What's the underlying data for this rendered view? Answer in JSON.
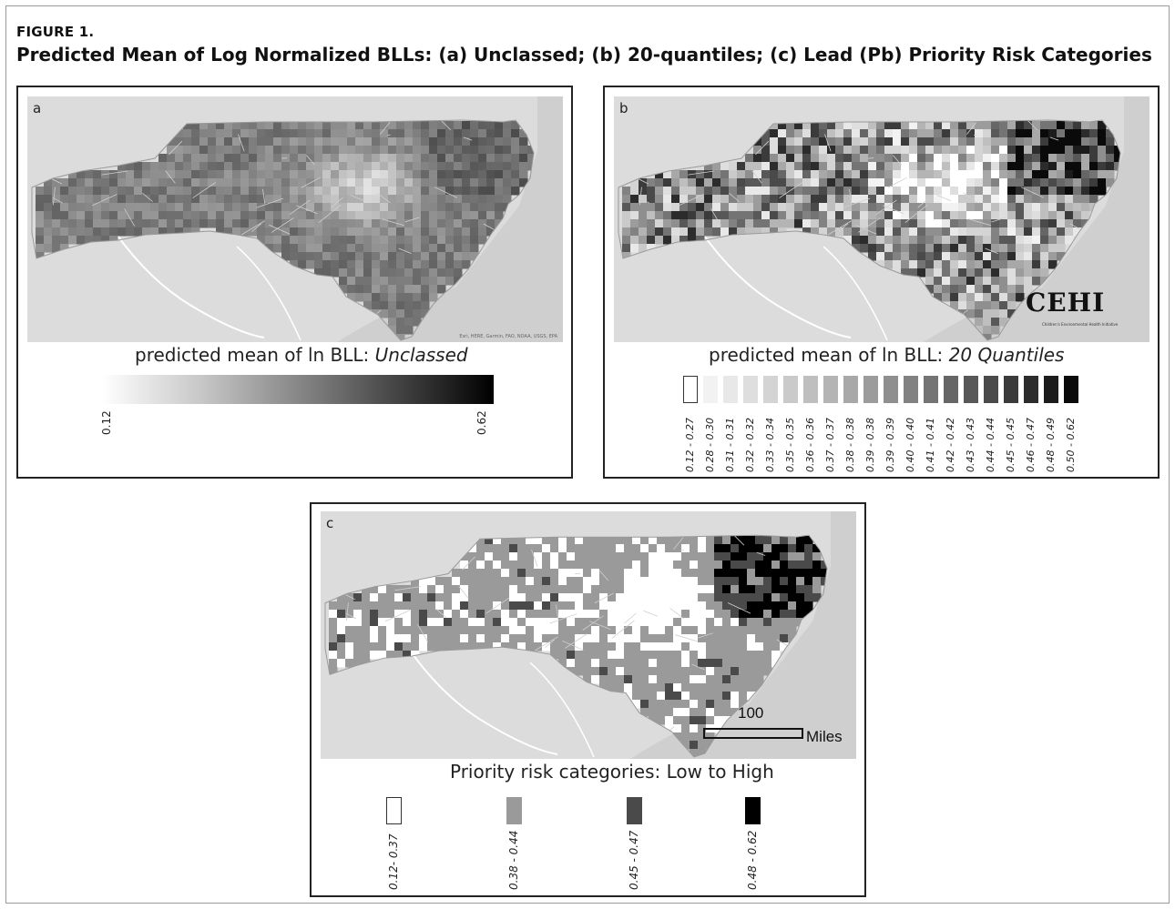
{
  "figure": {
    "label": "FIGURE 1.",
    "title": "Predicted Mean of Log Normalized BLLs: (a) Unclassed; (b) 20-quantiles; (c) Lead (Pb) Priority Risk Categories"
  },
  "panel_a": {
    "letter": "a",
    "attribution": "Esri, HERE, Garmin, FAO, NOAA, USGS, EPA",
    "legend_title_prefix": "predicted mean of ln BLL: ",
    "legend_title_emph": "Unclassed",
    "min_label": "0.12",
    "max_label": "0.62",
    "range": [
      0.12,
      0.62
    ]
  },
  "panel_b": {
    "letter": "b",
    "logo_text": "CEHI",
    "logo_subtitle": "Children's Environmental Health Initiative",
    "legend_title_prefix": "predicted mean of ln BLL: ",
    "legend_title_emph": "20 Quantiles",
    "classes": [
      {
        "label": "0.12 - 0.27",
        "color": "#ffffff"
      },
      {
        "label": "0.28 - 0.30",
        "color": "#f2f2f2"
      },
      {
        "label": "0.31 - 0.31",
        "color": "#e8e8e8"
      },
      {
        "label": "0.32 - 0.32",
        "color": "#dedede"
      },
      {
        "label": "0.33 - 0.34",
        "color": "#d4d4d4"
      },
      {
        "label": "0.35 - 0.35",
        "color": "#cacaca"
      },
      {
        "label": "0.36 - 0.36",
        "color": "#bfbfbf"
      },
      {
        "label": "0.37 - 0.37",
        "color": "#b4b4b4"
      },
      {
        "label": "0.38 - 0.38",
        "color": "#a8a8a8"
      },
      {
        "label": "0.39 - 0.38",
        "color": "#9c9c9c"
      },
      {
        "label": "0.39 - 0.39",
        "color": "#8f8f8f"
      },
      {
        "label": "0.40 - 0.40",
        "color": "#828282"
      },
      {
        "label": "0.41 - 0.41",
        "color": "#747474"
      },
      {
        "label": "0.42 - 0.42",
        "color": "#666666"
      },
      {
        "label": "0.43 - 0.43",
        "color": "#585858"
      },
      {
        "label": "0.44 - 0.44",
        "color": "#4a4a4a"
      },
      {
        "label": "0.45 - 0.45",
        "color": "#3b3b3b"
      },
      {
        "label": "0.46 - 0.47",
        "color": "#2c2c2c"
      },
      {
        "label": "0.48 - 0.49",
        "color": "#1c1c1c"
      },
      {
        "label": "0.50 - 0.62",
        "color": "#0a0a0a"
      }
    ]
  },
  "panel_c": {
    "letter": "c",
    "scale_value": "100",
    "scale_unit": "Miles",
    "legend_title": "Priority risk categories: Low to High",
    "categories": [
      {
        "label": "0.12- 0.37",
        "color": "#ffffff"
      },
      {
        "label": "0.38 - 0.44",
        "color": "#9a9a9a"
      },
      {
        "label": "0.45 - 0.47",
        "color": "#4a4a4a"
      },
      {
        "label": "0.48 - 0.62",
        "color": "#000000"
      }
    ]
  }
}
